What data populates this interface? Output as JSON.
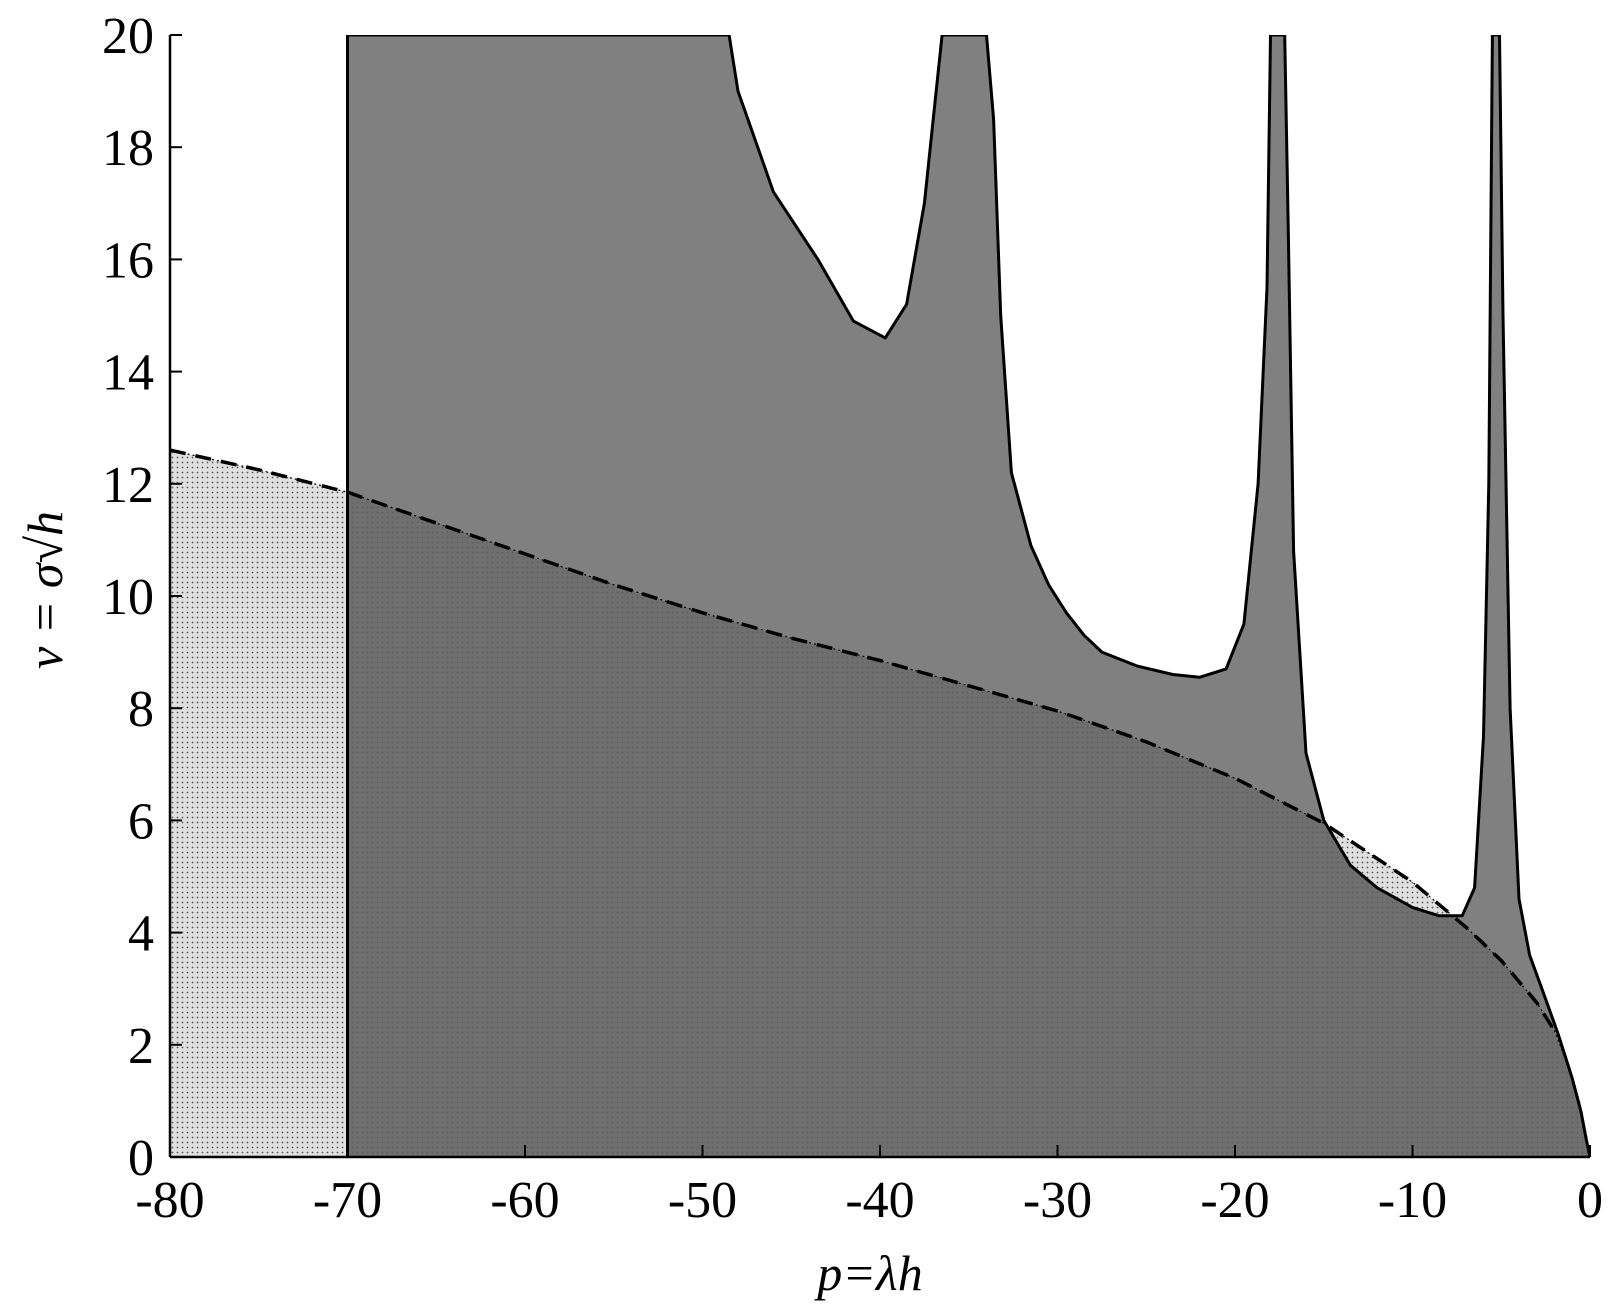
{
  "chart_data": {
    "type": "area",
    "xlabel": "p=λh",
    "ylabel": "ν = σ√h",
    "xlim": [
      -80,
      0
    ],
    "ylim": [
      0,
      20
    ],
    "x_ticks": [
      "-80",
      "-70",
      "-60",
      "-50",
      "-40",
      "-30",
      "-20",
      "-10",
      "0"
    ],
    "y_ticks": [
      "0",
      "2",
      "4",
      "6",
      "8",
      "10",
      "12",
      "14",
      "16",
      "18",
      "20"
    ],
    "grid": false,
    "legend": "none",
    "colors": {
      "stable_region_fill": "#808080",
      "dotted_region_fill": "#e0e0e0",
      "overlap_fill": "#6f6f6f",
      "boundary": "#000000"
    },
    "series": [
      {
        "style": "solid-boundary-filled-gray",
        "x": [
          -70,
          -70,
          -48.5,
          -48,
          -46,
          -43.5,
          -41.5,
          -39.7,
          -38.5,
          -37.5,
          -36.9,
          -36.5,
          -36.2,
          -34.0,
          -33.6,
          -33.2,
          -32.6,
          -31.5,
          -30.5,
          -29.5,
          -28.5,
          -27.5,
          -25.5,
          -23.5,
          -22.0,
          -20.5,
          -19.5,
          -18.7,
          -18.2,
          -18.0,
          -17.2,
          -17.0,
          -16.7,
          -16.0,
          -15.0,
          -13.5,
          -12.0,
          -10.0,
          -8.5,
          -7.2,
          -6.5,
          -6.0,
          -5.7,
          -5.5,
          -5.1,
          -4.9,
          -4.5,
          -4.0,
          -3.4,
          -2.6,
          -1.8,
          -1.0,
          -0.5,
          -0.2,
          0,
          -70
        ],
        "y": [
          0,
          20,
          20,
          19,
          17.2,
          16.0,
          14.9,
          14.6,
          15.2,
          17.0,
          18.8,
          20,
          20,
          20,
          18.5,
          15.0,
          12.2,
          10.9,
          10.2,
          9.7,
          9.3,
          9.0,
          8.75,
          8.6,
          8.55,
          8.7,
          9.5,
          12.0,
          15.5,
          20,
          20,
          16.5,
          10.8,
          7.2,
          6.0,
          5.2,
          4.8,
          4.45,
          4.3,
          4.3,
          4.8,
          7.5,
          12.0,
          20,
          20,
          15.0,
          8.0,
          4.6,
          3.6,
          2.9,
          2.2,
          1.4,
          0.8,
          0.3,
          0,
          0
        ]
      },
      {
        "style": "dashed-boundary",
        "x": [
          -80,
          -75,
          -70,
          -65,
          -60,
          -55,
          -50,
          -45,
          -40,
          -35,
          -30,
          -25,
          -20,
          -15,
          -10,
          -7,
          -5,
          -3,
          -2
        ],
        "y": [
          12.6,
          12.25,
          11.85,
          11.3,
          10.75,
          10.2,
          9.7,
          9.25,
          8.85,
          8.4,
          7.95,
          7.4,
          6.75,
          5.95,
          4.9,
          4.1,
          3.5,
          2.75,
          2.25
        ]
      },
      {
        "style": "dotted-region",
        "x": [
          -80,
          -80,
          -75,
          -70,
          -65,
          -60,
          -55,
          -50,
          -45,
          -40,
          -35,
          -30,
          -25,
          -20,
          -15,
          -10,
          -7,
          -5,
          -3,
          -2,
          -1.2,
          -0.6,
          -0.2,
          0,
          -80
        ],
        "y": [
          0,
          12.6,
          12.25,
          11.85,
          11.3,
          10.75,
          10.2,
          9.7,
          9.25,
          8.85,
          8.4,
          7.95,
          7.4,
          6.75,
          5.95,
          4.9,
          4.1,
          3.5,
          2.75,
          2.25,
          1.6,
          1.0,
          0.4,
          0,
          0
        ]
      }
    ]
  }
}
